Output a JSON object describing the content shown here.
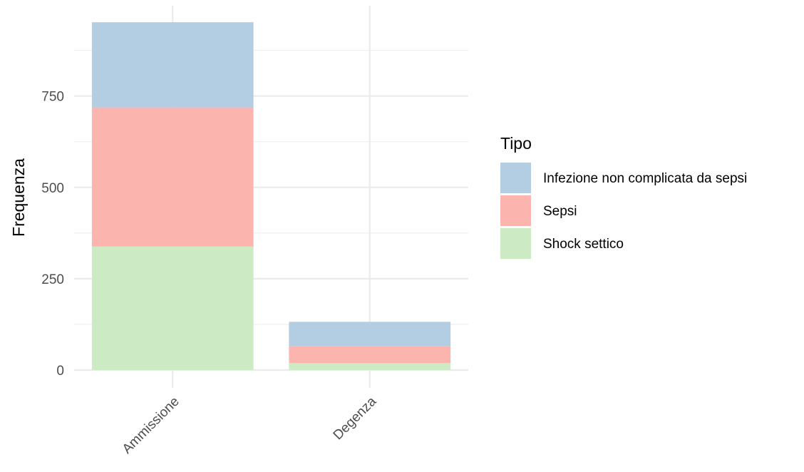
{
  "chart_data": {
    "type": "bar",
    "stacked": true,
    "title": "",
    "xlabel": "",
    "ylabel": "Frequenza",
    "categories": [
      "Ammissione",
      "Degenza"
    ],
    "series": [
      {
        "name": "Shock settico",
        "color": "#CCEBC5",
        "values": [
          338,
          19
        ]
      },
      {
        "name": "Sepsi",
        "color": "#FBB4AE",
        "values": [
          381,
          46
        ]
      },
      {
        "name": "Infezione non complicata da sepsi",
        "color": "#B3CDE3",
        "values": [
          233,
          67
        ]
      }
    ],
    "ylim": [
      0,
      950
    ],
    "yticks": [
      0,
      250,
      500,
      750
    ],
    "ytick_labels": [
      "0",
      "250",
      "500",
      "750"
    ],
    "grid": true,
    "legend": {
      "title": "Tipo",
      "position": "right"
    }
  }
}
